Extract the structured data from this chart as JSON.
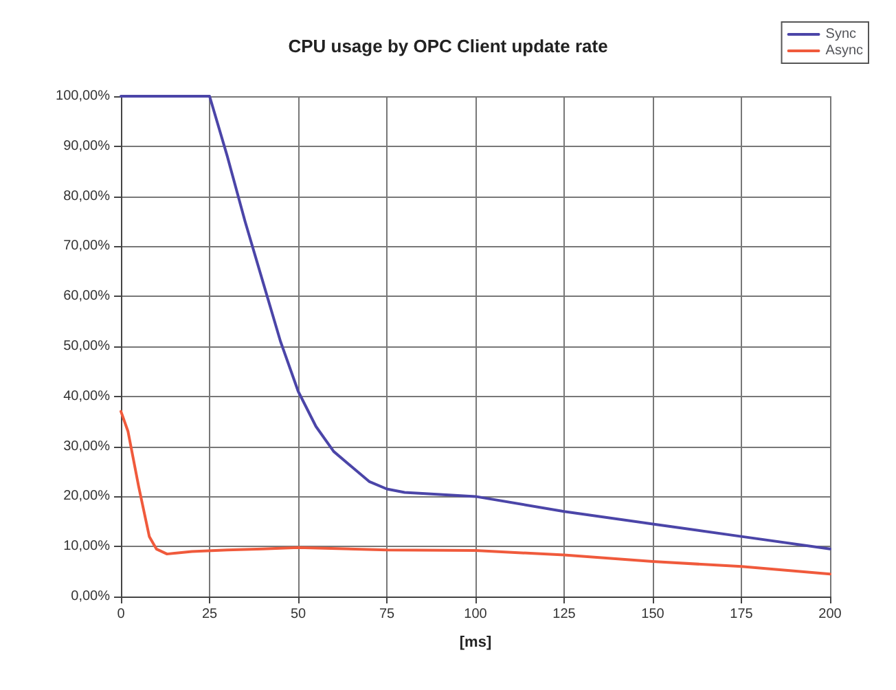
{
  "chart_data": {
    "type": "line",
    "title": "CPU usage by OPC Client update rate",
    "xlabel": "[ms]",
    "series": [
      {
        "name": "Sync",
        "color": "#4b45a8",
        "x": [
          0,
          5,
          10,
          15,
          20,
          25,
          30,
          35,
          40,
          45,
          50,
          55,
          60,
          65,
          70,
          75,
          80,
          100,
          125,
          150,
          175,
          200
        ],
        "values": [
          100,
          100,
          100,
          100,
          100,
          100,
          88,
          75,
          63,
          51,
          41,
          34,
          29,
          26,
          23,
          21.5,
          20.8,
          20,
          17,
          14.5,
          12,
          9.5
        ]
      },
      {
        "name": "Async",
        "color": "#f05a3c",
        "x": [
          0,
          2,
          5,
          8,
          10,
          13,
          20,
          30,
          40,
          50,
          75,
          100,
          125,
          150,
          175,
          200
        ],
        "values": [
          37,
          33,
          22,
          12,
          9.5,
          8.5,
          9,
          9.3,
          9.5,
          9.8,
          9.3,
          9.2,
          8.3,
          7,
          6,
          4.5
        ]
      }
    ],
    "xlim": [
      0,
      200
    ],
    "xticks": [
      0,
      25,
      50,
      75,
      100,
      125,
      150,
      175,
      200
    ],
    "ylim": [
      0,
      100
    ],
    "yticks": [
      {
        "value": 0,
        "label": "0,00%"
      },
      {
        "value": 10,
        "label": "10,00%"
      },
      {
        "value": 20,
        "label": "20,00%"
      },
      {
        "value": 30,
        "label": "30,00%"
      },
      {
        "value": 40,
        "label": "40,00%"
      },
      {
        "value": 50,
        "label": "50,00%"
      },
      {
        "value": 60,
        "label": "60,00%"
      },
      {
        "value": 70,
        "label": "70,00%"
      },
      {
        "value": 80,
        "label": "80,00%"
      },
      {
        "value": 90,
        "label": "90,00%"
      },
      {
        "value": 100,
        "label": "100,00%"
      }
    ],
    "grid": true,
    "legend": "top right",
    "marker": "none",
    "line_style": "solid"
  }
}
